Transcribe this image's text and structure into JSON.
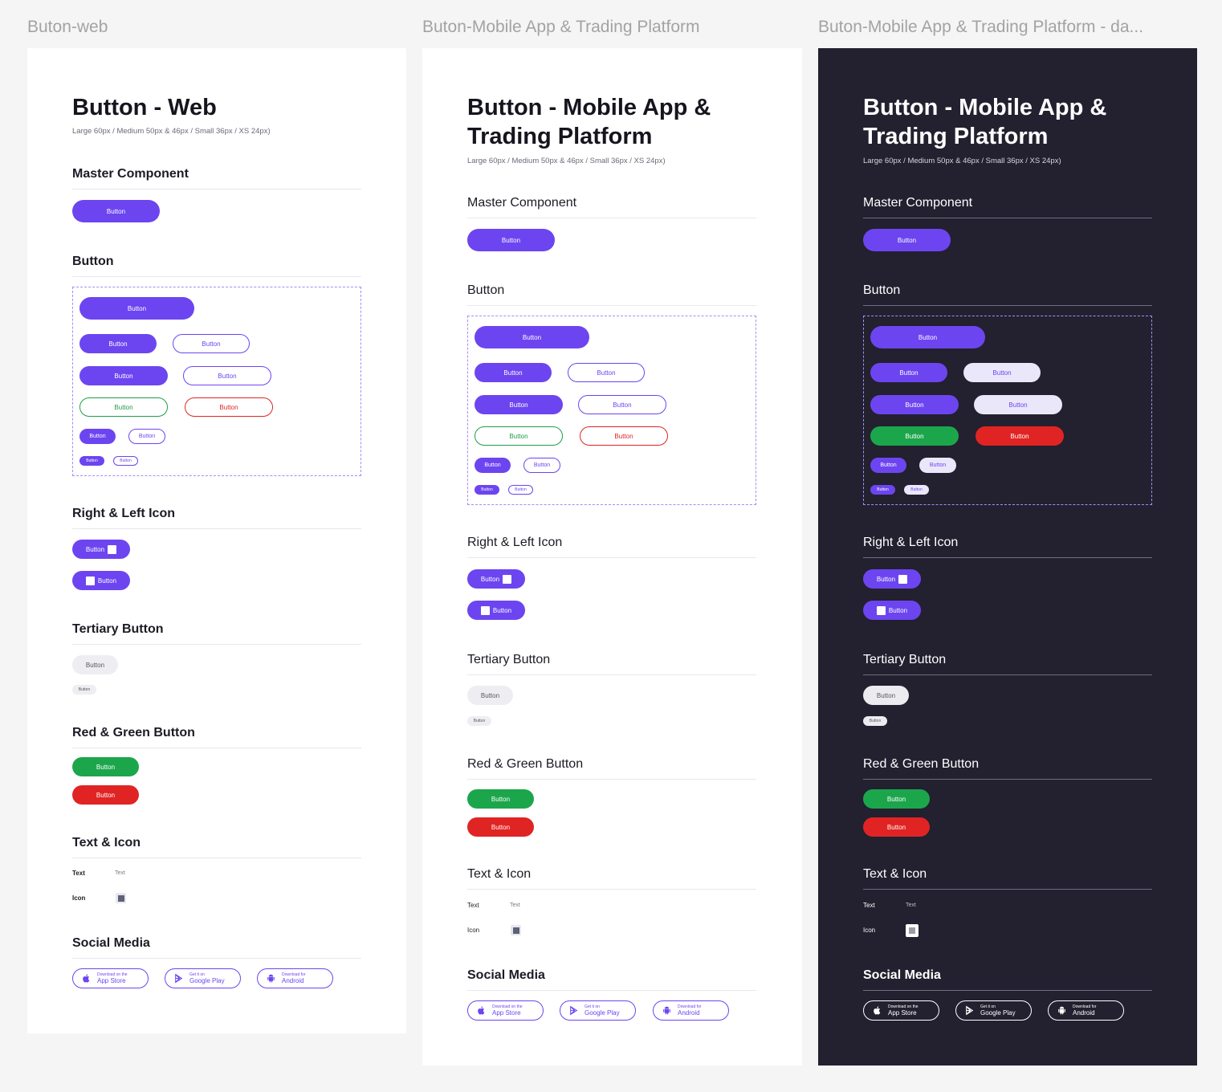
{
  "frames": [
    {
      "label": "Buton-web",
      "title_lines": [
        "Button - Web"
      ],
      "subtitle": "Large 60px / Medium 50px & 46px / Small 36px / XS 24px)",
      "sections": {
        "master": "Master Component",
        "button": "Button",
        "icon": "Right & Left Icon",
        "tertiary": "Tertiary Button",
        "redgreen": "Red & Green Button",
        "texticon": "Text & Icon",
        "social": "Social Media"
      },
      "button_label": "Button",
      "text_key": "Text",
      "text_value": "Text",
      "icon_key": "Icon",
      "stores": [
        {
          "line1": "Download on the",
          "line2": "App Store"
        },
        {
          "line1": "Get it on",
          "line2": "Google Play"
        },
        {
          "line1": "Download for",
          "line2": "Android"
        }
      ]
    },
    {
      "label": "Buton-Mobile App & Trading Platform",
      "title_lines": [
        "Button - Mobile App &",
        "Trading Platform"
      ],
      "subtitle": "Large 60px / Medium 50px & 46px / Small 36px / XS 24px)",
      "sections": {
        "master": "Master Component",
        "button": "Button",
        "icon": "Right & Left Icon",
        "tertiary": "Tertiary Button",
        "redgreen": "Red & Green Button",
        "texticon": "Text & Icon",
        "social": "Social Media"
      },
      "button_label": "Button",
      "text_key": "Text",
      "text_value": "Text",
      "icon_key": "Icon",
      "stores": [
        {
          "line1": "Download on the",
          "line2": "App Store"
        },
        {
          "line1": "Get it on",
          "line2": "Google Play"
        },
        {
          "line1": "Download for",
          "line2": "Android"
        }
      ]
    },
    {
      "label": "Buton-Mobile App & Trading Platform - da...",
      "title_lines": [
        "Button - Mobile App &",
        "Trading Platform"
      ],
      "subtitle": "Large 60px / Medium 50px & 46px / Small 36px / XS 24px)",
      "sections": {
        "master": "Master Component",
        "button": "Button",
        "icon": "Right & Left Icon",
        "tertiary": "Tertiary Button",
        "redgreen": "Red & Green Button",
        "texticon": "Text & Icon",
        "social": "Social Media"
      },
      "button_label": "Button",
      "text_key": "Text",
      "text_value": "Text",
      "icon_key": "Icon",
      "stores": [
        {
          "line1": "Download on the",
          "line2": "App Store"
        },
        {
          "line1": "Get it on",
          "line2": "Google Play"
        },
        {
          "line1": "Download for",
          "line2": "Android"
        }
      ]
    }
  ],
  "icons": {
    "store_1": "apple-icon",
    "store_2": "google-play-icon",
    "store_3": "android-icon",
    "placeholder": "square-placeholder-icon"
  },
  "colors": {
    "primary": "#6c45f0",
    "green": "#1ca64c",
    "red": "#e02424",
    "dark_bg": "#23202f",
    "tertiary": "#eeeef2"
  }
}
